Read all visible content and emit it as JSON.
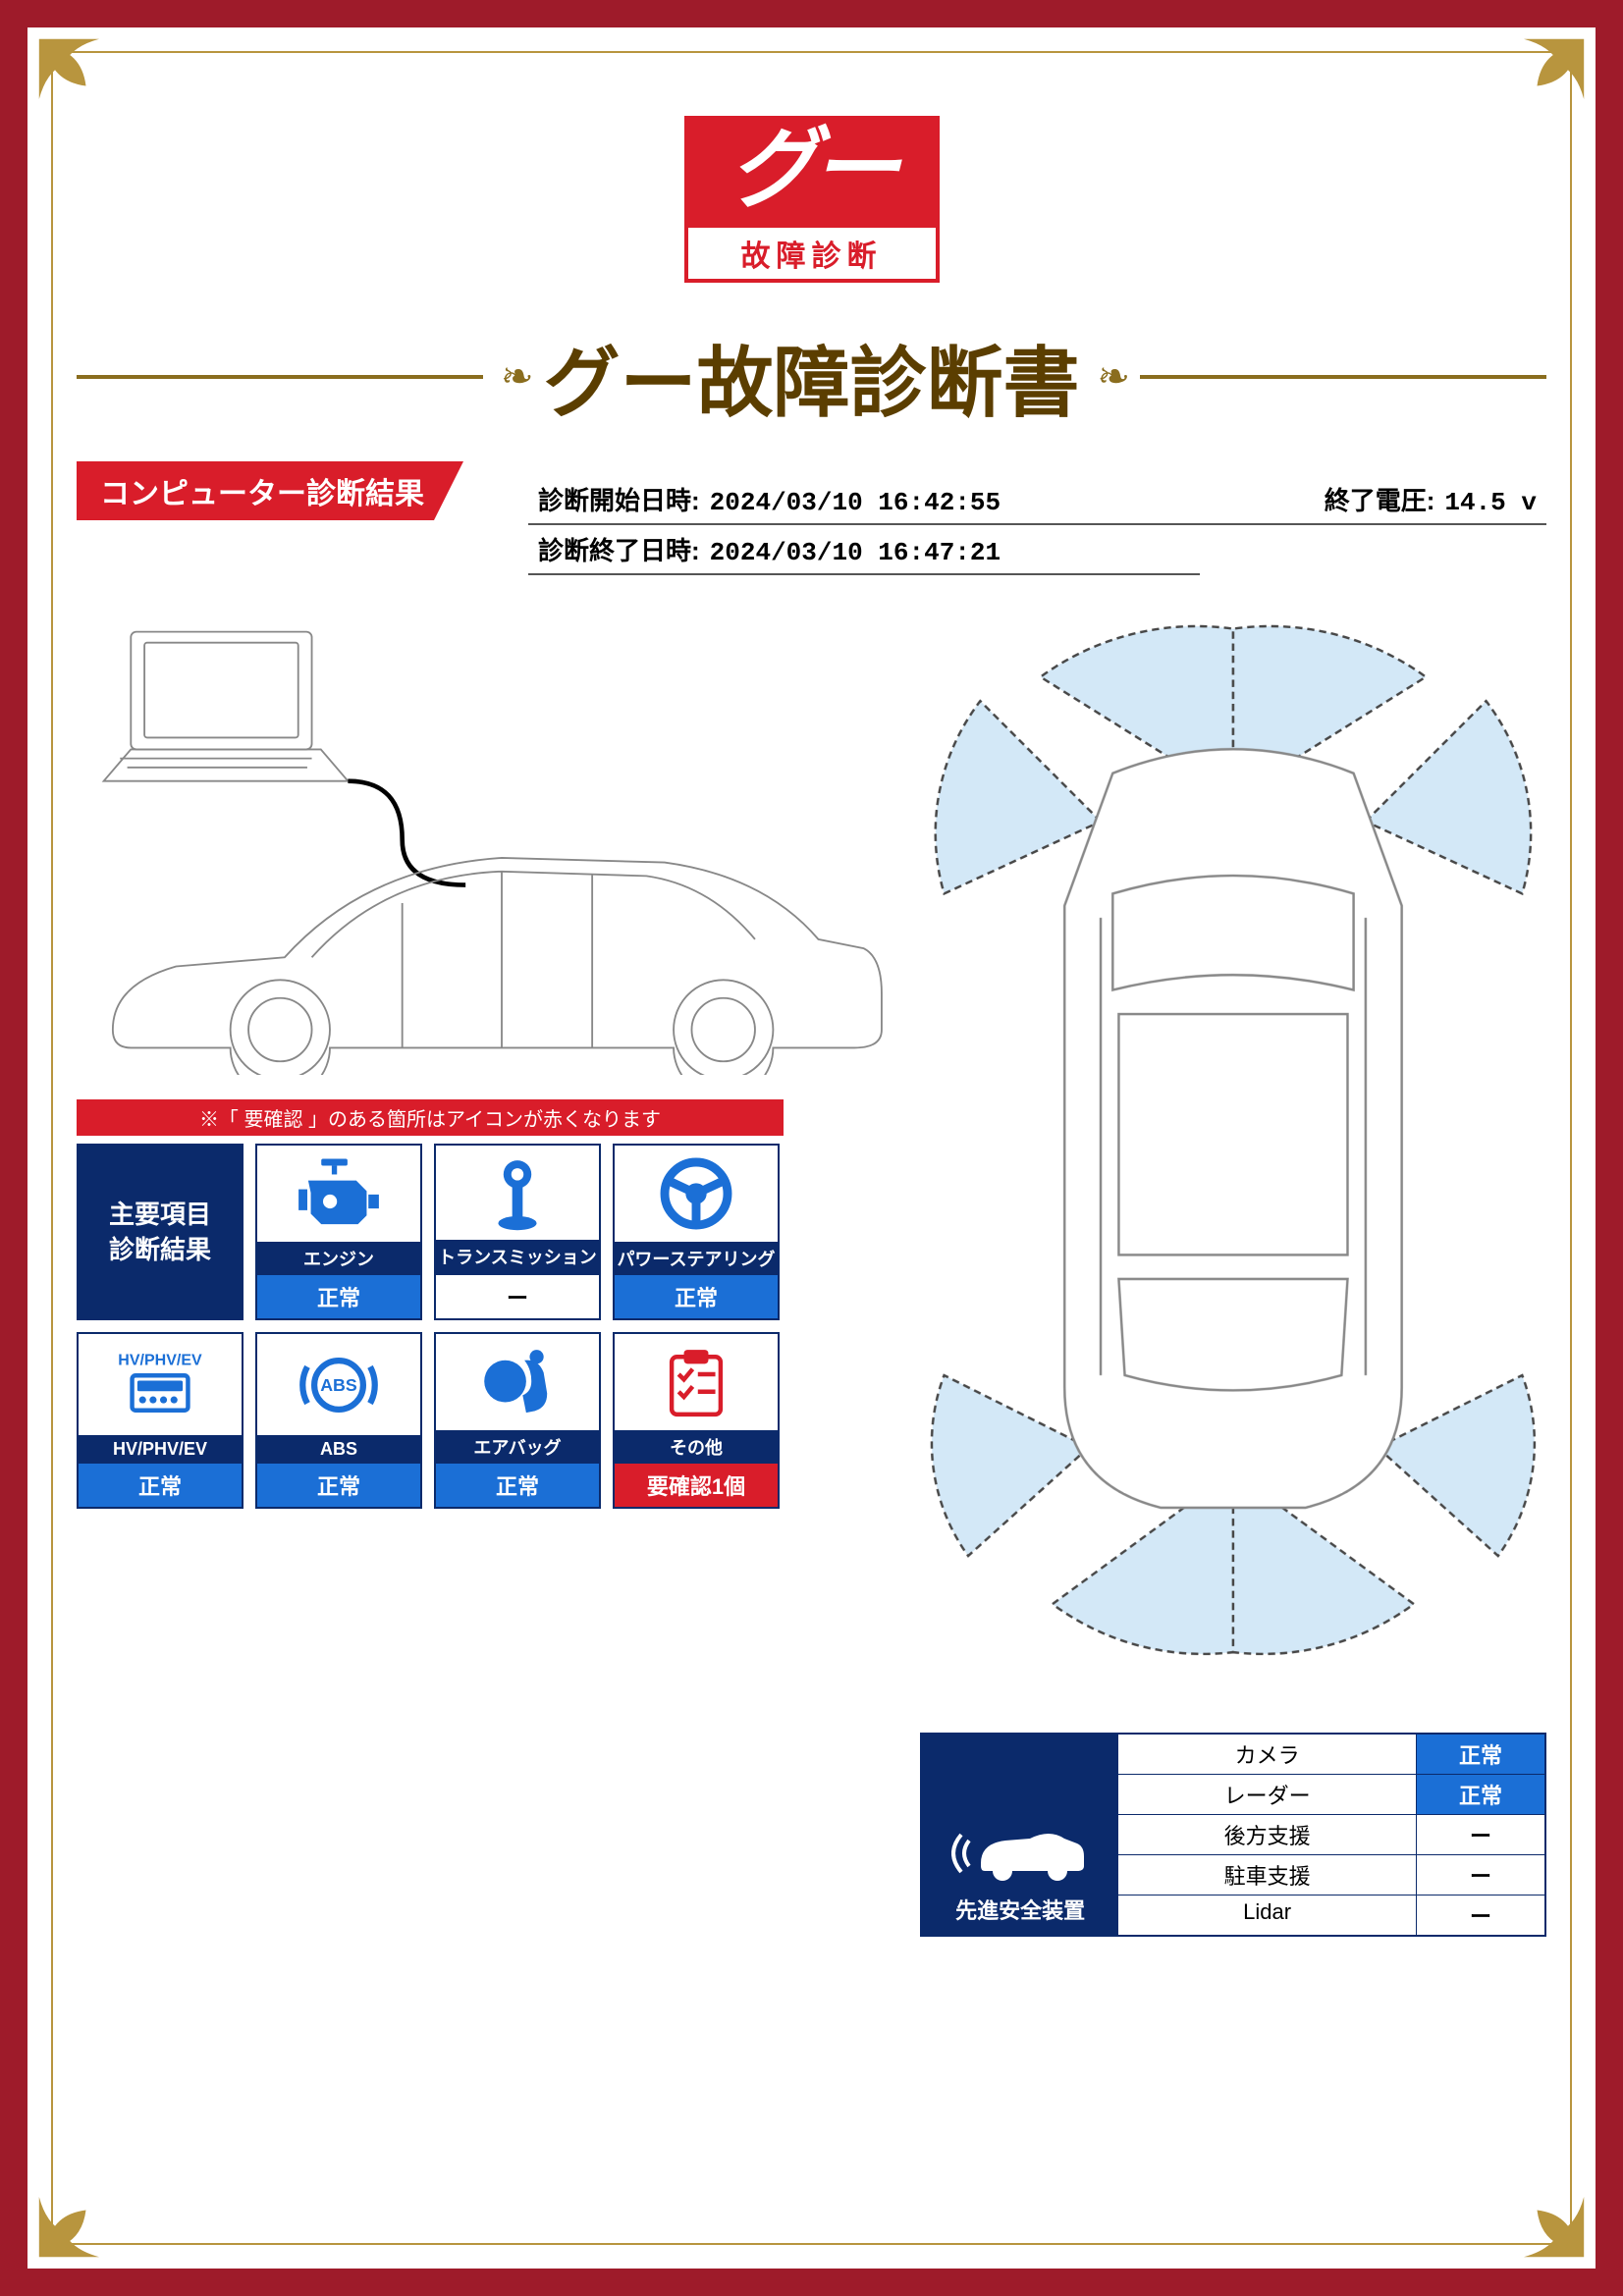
{
  "colors": {
    "frame_red": "#9e1b2a",
    "accent_red": "#d91d2a",
    "navy": "#0b2a6b",
    "blue": "#1b6fd6",
    "gold": "#b8953e",
    "title_brown": "#5b3e00"
  },
  "logo": {
    "top_text": "グー",
    "bottom_text": "故障診断"
  },
  "title": "グー故障診断書",
  "section_banner": "コンピューター診断結果",
  "info": {
    "start_label": "診断開始日時:",
    "start_value": "2024/03/10 16:42:55",
    "end_voltage_label": "終了電圧:",
    "end_voltage_value": "14.5 v",
    "end_label": "診断終了日時:",
    "end_value": "2024/03/10 16:47:21"
  },
  "results": {
    "note": "※「 要確認 」のある箇所はアイコンが赤くなります",
    "title_cell": "主要項目\n診断結果",
    "cells": [
      {
        "name": "エンジン",
        "status": "正常",
        "kind": "ok",
        "icon": "engine"
      },
      {
        "name": "トランスミッション",
        "status": "ー",
        "kind": "dash",
        "icon": "transmission"
      },
      {
        "name": "パワーステアリング",
        "status": "正常",
        "kind": "ok",
        "icon": "steering"
      },
      {
        "name": "HV/PHV/EV",
        "status": "正常",
        "kind": "ok",
        "icon": "hvev"
      },
      {
        "name": "ABS",
        "status": "正常",
        "kind": "ok",
        "icon": "abs"
      },
      {
        "name": "エアバッグ",
        "status": "正常",
        "kind": "ok",
        "icon": "airbag"
      },
      {
        "name": "その他",
        "status": "要確認1個",
        "kind": "warn",
        "icon": "other"
      }
    ]
  },
  "safety": {
    "label": "先進安全装置",
    "rows": [
      {
        "name": "カメラ",
        "status": "正常",
        "kind": "ok"
      },
      {
        "name": "レーダー",
        "status": "正常",
        "kind": "ok"
      },
      {
        "name": "後方支援",
        "status": "ー",
        "kind": "dash"
      },
      {
        "name": "駐車支援",
        "status": "ー",
        "kind": "dash"
      },
      {
        "name": "Lidar",
        "status": "ー",
        "kind": "dash"
      }
    ]
  }
}
